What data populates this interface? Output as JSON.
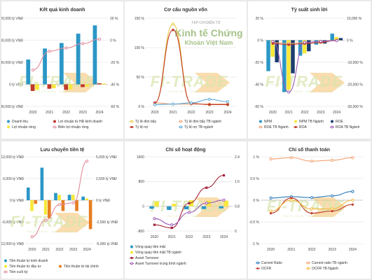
{
  "watermark": {
    "brand": "FI-TRADE",
    "tagline": "VALUE DATA - SMART INVEST"
  },
  "stamp": {
    "top": "TẠP CHÍ ĐIỆN TỬ",
    "mid": "Kinh tế Chứng",
    "bottom": "Khoán Việt Nam"
  },
  "colors": {
    "teal": "#2b97c6",
    "red": "#c0392b",
    "yellow": "#f7e83b",
    "pink": "#e08b9a",
    "orange": "#e67e22",
    "purple": "#9b59b6",
    "darkred": "#a3233a",
    "navy": "#2c4a8a",
    "salmon": "#f0a070",
    "lightblue": "#5ba8d6",
    "green": "#5fa33a"
  },
  "chart_data": [
    {
      "id": "kqkd",
      "type": "bar",
      "title": "Kết quả kinh doanh",
      "categories": [
        "2020",
        "2021",
        "2022",
        "2023",
        "2024"
      ],
      "y_left": {
        "ylim": [
          -40000,
          120000
        ],
        "ticks": [
          -40000,
          0,
          40000,
          80000,
          120000
        ],
        "tick_labels": [
          "-40,000 tỷ VNĐ",
          "0 tỷ VNĐ",
          "40,000 tỷ VNĐ",
          "80,000 tỷ VNĐ",
          "120,000 tỷ VNĐ"
        ]
      },
      "y_right": {
        "ylim": [
          -60,
          20
        ],
        "ticks": [
          -60,
          -40,
          -20,
          0,
          20
        ],
        "tick_labels": [
          "-60 %",
          "-40 %",
          "-20 %",
          "0 %",
          "20 %"
        ]
      },
      "series": [
        {
          "name": "Doanh thu",
          "type": "bar",
          "axis": "left",
          "color": "#2b97c6",
          "marker": "circle",
          "values": [
            45000,
            65000,
            75000,
            92000,
            107000
          ]
        },
        {
          "name": "Lợi nhuận từ HĐ kinh doanh",
          "type": "bar",
          "axis": "left",
          "color": "#c0392b",
          "marker": "circle",
          "values": [
            -12000,
            -8000,
            -10000,
            -5000,
            2000
          ]
        },
        {
          "name": "Lợi nhuận ròng",
          "type": "bar",
          "axis": "left",
          "color": "#f7e83b",
          "marker": "circle",
          "values": [
            -10000,
            -7000,
            -9000,
            -4000,
            1500
          ]
        },
        {
          "name": "Biên lợi nhuận ròng",
          "type": "line",
          "axis": "right",
          "color": "#e08b9a",
          "marker": "ring",
          "values": [
            -27,
            -10,
            -7,
            -3,
            1
          ]
        }
      ]
    },
    {
      "id": "ccnv",
      "type": "line",
      "title": "Cơ cấu nguồn vốn",
      "categories": [
        "2020",
        "2021",
        "2022",
        "2023",
        "2024"
      ],
      "y_left": {
        "ylim": [
          0,
          150
        ],
        "ticks": [
          0,
          50,
          100,
          150
        ],
        "tick_labels": [
          "0 %",
          "50 %",
          "100 %",
          "150 %"
        ]
      },
      "series": [
        {
          "name": "Tỷ lệ đòn bẩy",
          "color": "#e8c840",
          "marker": "ring",
          "values": [
            6,
            140,
            5,
            3,
            3
          ]
        },
        {
          "name": "Tỷ lệ đòn bẩy TB ngành",
          "color": "#f0a070",
          "marker": "ring",
          "values": [
            6,
            4,
            4,
            4,
            4
          ]
        },
        {
          "name": "Tỷ lệ nợ",
          "color": "#c0392b",
          "marker": "square",
          "values": [
            6,
            130,
            5,
            3,
            3
          ]
        },
        {
          "name": "Tỷ lệ nợ TB ngành",
          "color": "#5ba8d6",
          "marker": "ring",
          "values": [
            3,
            4,
            6,
            12,
            8
          ]
        }
      ]
    },
    {
      "id": "tssl",
      "type": "bar",
      "title": "Tỷ suất sinh lời",
      "categories": [
        "2020",
        "2021",
        "2022",
        "2023",
        "2024"
      ],
      "y_left": {
        "ylim": [
          -60,
          20
        ],
        "ticks": [
          -60,
          -40,
          -20,
          0,
          20
        ],
        "tick_labels": [
          "-60 %",
          "-40 %",
          "-20 %",
          "0 %",
          "20 %"
        ]
      },
      "y_right": {
        "ylim": [
          -30000,
          10000
        ],
        "ticks": [
          -30000,
          -20000,
          -10000,
          0,
          10000
        ],
        "tick_labels": [
          "-30,000 %",
          "-20,000 %",
          "-10,000 %",
          "0 %",
          "10,000 %"
        ]
      },
      "series": [
        {
          "name": "NPM",
          "type": "bar",
          "axis": "left",
          "color": "#2b97c6",
          "marker": "circle",
          "values": [
            -28,
            -47,
            -14,
            -4,
            6
          ]
        },
        {
          "name": "NPM TB Ngành",
          "type": "bar",
          "axis": "left",
          "color": "#f7e83b",
          "marker": "circle",
          "values": [
            -15,
            -45,
            -12,
            -3,
            3
          ]
        },
        {
          "name": "ROE",
          "type": "bar",
          "axis": "left",
          "color": "#1b3d6e",
          "marker": "circle",
          "values": [
            -20,
            -30,
            -10,
            -3,
            2
          ]
        },
        {
          "name": "ROE TB Ngành",
          "type": "line",
          "axis": "left",
          "color": "#f0a070",
          "marker": "ring",
          "values": [
            -2,
            -3,
            -2,
            -1,
            0
          ]
        },
        {
          "name": "ROA",
          "type": "line",
          "axis": "left",
          "color": "#c0392b",
          "marker": "square",
          "values": [
            -3,
            -4,
            -3,
            -2,
            0
          ]
        },
        {
          "name": "ROA TB Ngành",
          "type": "line",
          "axis": "right",
          "color": "#9b59b6",
          "marker": "ring",
          "values": [
            -500,
            -23500,
            -1000,
            -500,
            -200
          ]
        }
      ]
    },
    {
      "id": "lctt",
      "type": "bar",
      "title": "Lưu chuyển tiền tệ",
      "categories": [
        "2020",
        "2021",
        "2022",
        "2023",
        "2024"
      ],
      "y_left": {
        "ylim": [
          -12000,
          12000
        ],
        "ticks": [
          -12000,
          -6000,
          0,
          6000,
          12000
        ],
        "tick_labels": [
          "-12,000 tỷ VNĐ",
          "-6,000 tỷ VNĐ",
          "0 tỷ VNĐ",
          "6,000 tỷ VNĐ",
          "12,000 tỷ VNĐ"
        ]
      },
      "y_right": {
        "ylim": [
          -5000,
          5000
        ],
        "ticks": [
          -5000,
          -2500,
          0,
          2500,
          5000
        ],
        "tick_labels": [
          "-5,000 tỷ VNĐ",
          "-2,500 tỷ VNĐ",
          "0 tỷ VNĐ",
          "2,500 tỷ VNĐ",
          "5,000 tỷ VNĐ"
        ]
      },
      "series": [
        {
          "name": "Tiền thuần từ kinh doanh",
          "type": "bar",
          "axis": "left",
          "color": "#2b97c6",
          "marker": "circle",
          "values": [
            3500,
            9000,
            2000,
            1500,
            1000
          ]
        },
        {
          "name": "Tiền thuần từ đầu tư",
          "type": "bar",
          "axis": "left",
          "color": "#f7e83b",
          "marker": "circle",
          "values": [
            -3000,
            -4000,
            1500,
            1500,
            500
          ]
        },
        {
          "name": "Tiền thuần từ tài chính",
          "type": "bar",
          "axis": "left",
          "color": "#e67e22",
          "marker": "circle",
          "values": [
            -1000,
            -5000,
            -3000,
            -3000,
            -8000
          ]
        },
        {
          "name": "Tiền cuối kỳ",
          "type": "line",
          "axis": "right",
          "color": "#e08b9a",
          "marker": "ring",
          "values": [
            -4200,
            -2300,
            -500,
            -300,
            4500
          ]
        }
      ]
    },
    {
      "id": "csh",
      "type": "bar",
      "title": "Chỉ số hoạt động",
      "categories": [
        "2020",
        "2021",
        "2022",
        "2023",
        "2024"
      ],
      "y_left": {
        "ylim": [
          -800,
          1600
        ],
        "ticks": [
          -800,
          0,
          800,
          1600
        ],
        "tick_labels": [
          "-800",
          "0",
          "800",
          "1600"
        ]
      },
      "y_right": {
        "ylim": [
          0,
          2.4
        ],
        "ticks": [
          0,
          0.8,
          1.6,
          2.4
        ],
        "tick_labels": [
          "0",
          "0.8",
          "1.6",
          "2.4"
        ]
      },
      "series": [
        {
          "name": "Vòng quay tiền mặt",
          "type": "bar",
          "axis": "left",
          "color": "#2b97c6",
          "marker": "circle",
          "values": [
            -80,
            -120,
            -100,
            -90,
            -70
          ]
        },
        {
          "name": "Vòng quay tiền mặt TB ngành",
          "type": "bar",
          "axis": "left",
          "color": "#f7e83b",
          "marker": "circle",
          "values": [
            150,
            80,
            200,
            180,
            180
          ]
        },
        {
          "name": "Asset Turnover",
          "type": "line",
          "axis": "right",
          "color": "#a3233a",
          "marker": "square",
          "values": [
            0.2,
            0.1,
            0.9,
            1.4,
            1.8
          ]
        },
        {
          "name": "Asset Turnover trung bình ngành",
          "type": "line",
          "axis": "right",
          "color": "#9b59b6",
          "marker": "ring",
          "values": [
            0.4,
            0.2,
            0.6,
            0.9,
            1.0
          ]
        }
      ]
    },
    {
      "id": "cstt",
      "type": "line",
      "title": "Chỉ số thanh toán",
      "categories": [
        "2020",
        "2021",
        "2022",
        "2023",
        "2024"
      ],
      "y_left": {
        "ylim": [
          -1,
          1
        ],
        "ticks": [
          -1,
          -0.5,
          0,
          0.5,
          1
        ],
        "tick_labels": [
          "-1 %",
          "-0.5 %",
          "0 %",
          "0.5 %",
          "1 %"
        ]
      },
      "series": [
        {
          "name": "Current Ratio",
          "color": "#2b7bb9",
          "marker": "ring",
          "values": [
            0.05,
            0.08,
            0.06,
            0.1,
            0.2
          ]
        },
        {
          "name": "Current ratio TB ngành",
          "color": "#f0a070",
          "marker": "ring",
          "values": [
            0.95,
            0.98,
            0.9,
            0.92,
            0.98
          ]
        },
        {
          "name": "OCFR",
          "color": "#c0392b",
          "marker": "circle",
          "values": [
            -0.3,
            0.05,
            -0.3,
            -0.25,
            -0.1
          ]
        },
        {
          "name": "OCFR TB Ngành",
          "color": "#f7b93b",
          "marker": "ring",
          "values": [
            -0.25,
            0.0,
            -0.2,
            -0.2,
            0.0
          ]
        }
      ]
    }
  ]
}
